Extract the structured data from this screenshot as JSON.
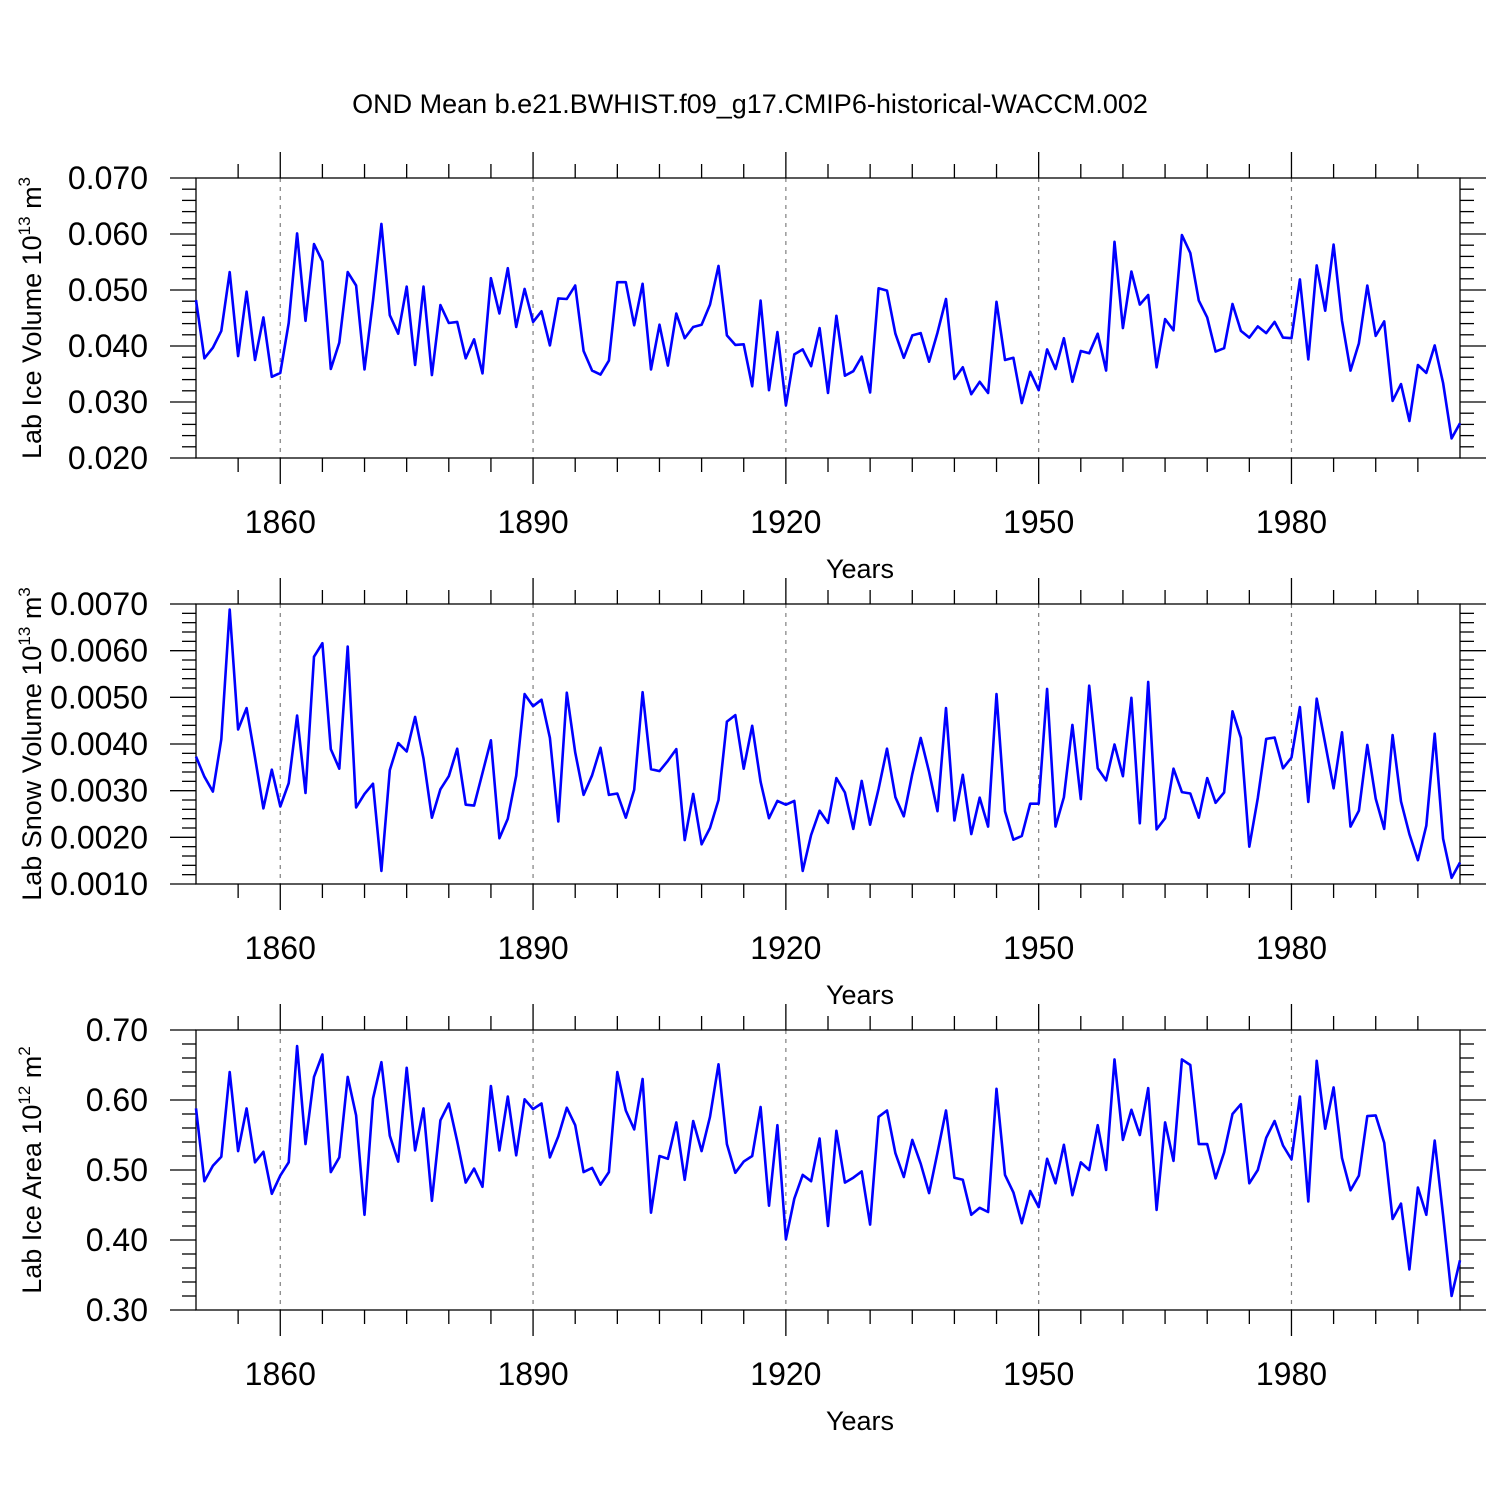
{
  "title": "OND Mean b.e21.BWHIST.f09_g17.CMIP6-historical-WACCM.002",
  "colors": {
    "series": "#0000ff",
    "axes": "#000000",
    "grid": "#808080"
  },
  "chart_data": [
    {
      "type": "line",
      "title": "OND Mean b.e21.BWHIST.f09_g17.CMIP6-historical-WACCM.002",
      "xlabel": "Years",
      "ylabel": "Lab Ice Volume 10",
      "ylabel_exponent": "13",
      "ylabel_unit": "m",
      "ylabel_unit_exponent": "3",
      "xlim": [
        1850,
        2000
      ],
      "ylim": [
        0.02,
        0.07
      ],
      "xticks": [
        "1860",
        "1890",
        "1920",
        "1950",
        "1980"
      ],
      "yticks": [
        "0.020",
        "0.030",
        "0.040",
        "0.050",
        "0.060",
        "0.070"
      ],
      "x_start": 1850,
      "x_step": 1,
      "values": [
        0.0482,
        0.0378,
        0.0397,
        0.0427,
        0.0532,
        0.0382,
        0.0497,
        0.0375,
        0.0451,
        0.0345,
        0.0352,
        0.0441,
        0.0601,
        0.0445,
        0.0582,
        0.0551,
        0.0359,
        0.0406,
        0.0532,
        0.0508,
        0.0358,
        0.0481,
        0.0618,
        0.0455,
        0.0422,
        0.0506,
        0.0366,
        0.0506,
        0.0348,
        0.0473,
        0.0441,
        0.0443,
        0.0378,
        0.0412,
        0.0351,
        0.0521,
        0.0458,
        0.0539,
        0.0434,
        0.0502,
        0.0443,
        0.0462,
        0.0401,
        0.0485,
        0.0484,
        0.0508,
        0.0391,
        0.0356,
        0.0349,
        0.0374,
        0.0514,
        0.0514,
        0.0437,
        0.0511,
        0.0358,
        0.0438,
        0.0365,
        0.0458,
        0.0414,
        0.0434,
        0.0438,
        0.0474,
        0.0543,
        0.0419,
        0.0402,
        0.0403,
        0.0328,
        0.0481,
        0.0321,
        0.0425,
        0.0294,
        0.0385,
        0.0394,
        0.0364,
        0.0432,
        0.0316,
        0.0454,
        0.0347,
        0.0355,
        0.0381,
        0.0317,
        0.0503,
        0.0499,
        0.0422,
        0.0379,
        0.0419,
        0.0423,
        0.0372,
        0.0424,
        0.0484,
        0.0341,
        0.0362,
        0.0314,
        0.0336,
        0.0316,
        0.0479,
        0.0375,
        0.0379,
        0.0298,
        0.0354,
        0.0321,
        0.0394,
        0.0359,
        0.0414,
        0.0336,
        0.0391,
        0.0387,
        0.0422,
        0.0356,
        0.0586,
        0.0432,
        0.0533,
        0.0474,
        0.0491,
        0.0362,
        0.0448,
        0.0428,
        0.0598,
        0.0566,
        0.0481,
        0.0451,
        0.039,
        0.0396,
        0.0475,
        0.0427,
        0.0415,
        0.0435,
        0.0423,
        0.0443,
        0.0415,
        0.0414,
        0.0519,
        0.0376,
        0.0544,
        0.0463,
        0.0581,
        0.0445,
        0.0356,
        0.0405,
        0.0508,
        0.0418,
        0.0444,
        0.0302,
        0.0332,
        0.0266,
        0.0366,
        0.0352,
        0.0401,
        0.0334,
        0.0235,
        0.0262
      ]
    },
    {
      "type": "line",
      "xlabel": "Years",
      "ylabel": "Lab Snow Volume 10",
      "ylabel_exponent": "13",
      "ylabel_unit": "m",
      "ylabel_unit_exponent": "3",
      "xlim": [
        1850,
        2000
      ],
      "ylim": [
        0.001,
        0.007
      ],
      "xticks": [
        "1860",
        "1890",
        "1920",
        "1950",
        "1980"
      ],
      "yticks": [
        "0.0010",
        "0.0020",
        "0.0030",
        "0.0040",
        "0.0050",
        "0.0060",
        "0.0070"
      ],
      "x_start": 1850,
      "x_step": 1,
      "values": [
        0.00373,
        0.0033,
        0.00298,
        0.0041,
        0.00688,
        0.00431,
        0.00477,
        0.00371,
        0.00262,
        0.00345,
        0.00266,
        0.00316,
        0.00461,
        0.00295,
        0.00587,
        0.00616,
        0.00389,
        0.00347,
        0.00609,
        0.00264,
        0.00293,
        0.00315,
        0.00128,
        0.00344,
        0.00402,
        0.00384,
        0.00458,
        0.00369,
        0.00242,
        0.00303,
        0.00331,
        0.0039,
        0.0027,
        0.00268,
        0.00338,
        0.00408,
        0.00198,
        0.0024,
        0.00332,
        0.00507,
        0.00481,
        0.00495,
        0.00413,
        0.00234,
        0.0051,
        0.00382,
        0.00291,
        0.00333,
        0.00392,
        0.00291,
        0.00294,
        0.00242,
        0.00302,
        0.00511,
        0.00346,
        0.00342,
        0.00364,
        0.00389,
        0.00194,
        0.00293,
        0.00185,
        0.0022,
        0.0028,
        0.00448,
        0.00462,
        0.00347,
        0.00439,
        0.00319,
        0.00241,
        0.00278,
        0.0027,
        0.00278,
        0.00128,
        0.00205,
        0.00257,
        0.00231,
        0.00327,
        0.00296,
        0.00218,
        0.00321,
        0.00227,
        0.00304,
        0.0039,
        0.00286,
        0.00245,
        0.00336,
        0.00413,
        0.0034,
        0.00256,
        0.00477,
        0.00236,
        0.00334,
        0.00207,
        0.00285,
        0.00223,
        0.00507,
        0.00256,
        0.00195,
        0.00203,
        0.00272,
        0.00272,
        0.00518,
        0.00223,
        0.00286,
        0.00441,
        0.00282,
        0.00525,
        0.00348,
        0.00322,
        0.00399,
        0.00331,
        0.00499,
        0.0023,
        0.00533,
        0.00217,
        0.00241,
        0.00347,
        0.00297,
        0.00294,
        0.00242,
        0.00327,
        0.00274,
        0.00296,
        0.0047,
        0.00413,
        0.0018,
        0.00284,
        0.00411,
        0.00414,
        0.00348,
        0.00371,
        0.00479,
        0.00276,
        0.00497,
        0.00401,
        0.00305,
        0.00425,
        0.00223,
        0.00257,
        0.00398,
        0.00283,
        0.00218,
        0.00419,
        0.00277,
        0.00207,
        0.00151,
        0.00225,
        0.00422,
        0.00197,
        0.00113,
        0.00146
      ]
    },
    {
      "type": "line",
      "xlabel": "Years",
      "ylabel": "Lab Ice Area 10",
      "ylabel_exponent": "12",
      "ylabel_unit": "m",
      "ylabel_unit_exponent": "2",
      "xlim": [
        1850,
        2000
      ],
      "ylim": [
        0.3,
        0.7
      ],
      "xticks": [
        "1860",
        "1890",
        "1920",
        "1950",
        "1980"
      ],
      "yticks": [
        "0.30",
        "0.40",
        "0.50",
        "0.60",
        "0.70"
      ],
      "x_start": 1850,
      "x_step": 1,
      "values": [
        0.588,
        0.484,
        0.506,
        0.519,
        0.64,
        0.527,
        0.588,
        0.511,
        0.526,
        0.466,
        0.492,
        0.511,
        0.677,
        0.537,
        0.633,
        0.665,
        0.497,
        0.518,
        0.633,
        0.578,
        0.436,
        0.602,
        0.654,
        0.549,
        0.512,
        0.646,
        0.528,
        0.588,
        0.456,
        0.571,
        0.595,
        0.541,
        0.482,
        0.502,
        0.476,
        0.62,
        0.528,
        0.605,
        0.521,
        0.601,
        0.587,
        0.595,
        0.518,
        0.548,
        0.589,
        0.564,
        0.497,
        0.503,
        0.479,
        0.497,
        0.64,
        0.585,
        0.558,
        0.63,
        0.439,
        0.52,
        0.516,
        0.568,
        0.486,
        0.57,
        0.527,
        0.576,
        0.651,
        0.537,
        0.496,
        0.512,
        0.52,
        0.59,
        0.449,
        0.564,
        0.401,
        0.459,
        0.493,
        0.484,
        0.545,
        0.42,
        0.556,
        0.482,
        0.489,
        0.498,
        0.422,
        0.576,
        0.585,
        0.524,
        0.49,
        0.543,
        0.509,
        0.467,
        0.525,
        0.585,
        0.489,
        0.486,
        0.436,
        0.446,
        0.44,
        0.616,
        0.493,
        0.468,
        0.424,
        0.47,
        0.447,
        0.516,
        0.481,
        0.536,
        0.464,
        0.511,
        0.5,
        0.564,
        0.5,
        0.658,
        0.543,
        0.586,
        0.55,
        0.617,
        0.443,
        0.568,
        0.513,
        0.658,
        0.65,
        0.537,
        0.537,
        0.488,
        0.525,
        0.58,
        0.594,
        0.481,
        0.5,
        0.546,
        0.57,
        0.535,
        0.515,
        0.605,
        0.455,
        0.656,
        0.559,
        0.618,
        0.517,
        0.471,
        0.492,
        0.577,
        0.578,
        0.539,
        0.43,
        0.452,
        0.358,
        0.475,
        0.436,
        0.542,
        0.435,
        0.32,
        0.371
      ]
    }
  ]
}
